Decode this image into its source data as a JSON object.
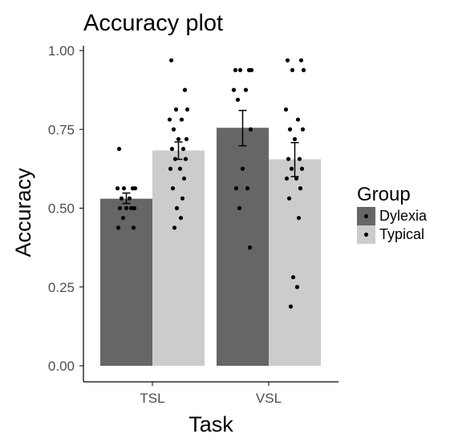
{
  "chart_data": {
    "type": "bar",
    "title": "Accuracy plot",
    "xlabel": "Task",
    "ylabel": "Accuracy",
    "categories": [
      "TSL",
      "VSL"
    ],
    "ylim": [
      0,
      1
    ],
    "yticks": [
      "0.00",
      "0.25",
      "0.50",
      "0.75",
      "1.00"
    ],
    "grid": false,
    "legend": {
      "title": "Group",
      "placement": "right"
    },
    "series": [
      {
        "name": "Dylexia",
        "color": "#666666",
        "values": [
          0.53,
          0.755
        ],
        "error": [
          [
            0.515,
            0.548
          ],
          [
            0.698,
            0.81
          ]
        ],
        "points": [
          [
            0.688,
            0.563,
            0.563,
            0.563,
            0.563,
            0.531,
            0.531,
            0.5,
            0.5,
            0.5,
            0.5,
            0.469,
            0.438,
            0.438
          ],
          [
            0.938,
            0.938,
            0.938,
            0.938,
            0.875,
            0.875,
            0.844,
            0.75,
            0.625,
            0.563,
            0.563,
            0.5,
            0.375
          ]
        ]
      },
      {
        "name": "Typical",
        "color": "#cccccc",
        "values": [
          0.683,
          0.655
        ],
        "error": [
          [
            0.655,
            0.71
          ],
          [
            0.6,
            0.708
          ]
        ],
        "points": [
          [
            0.969,
            0.875,
            0.813,
            0.813,
            0.781,
            0.781,
            0.75,
            0.719,
            0.719,
            0.688,
            0.688,
            0.656,
            0.656,
            0.625,
            0.625,
            0.594,
            0.563,
            0.531,
            0.5,
            0.469,
            0.438
          ],
          [
            0.969,
            0.969,
            0.938,
            0.938,
            0.813,
            0.781,
            0.75,
            0.75,
            0.719,
            0.656,
            0.656,
            0.625,
            0.625,
            0.594,
            0.594,
            0.563,
            0.531,
            0.469,
            0.281,
            0.25,
            0.188
          ]
        ]
      }
    ]
  }
}
